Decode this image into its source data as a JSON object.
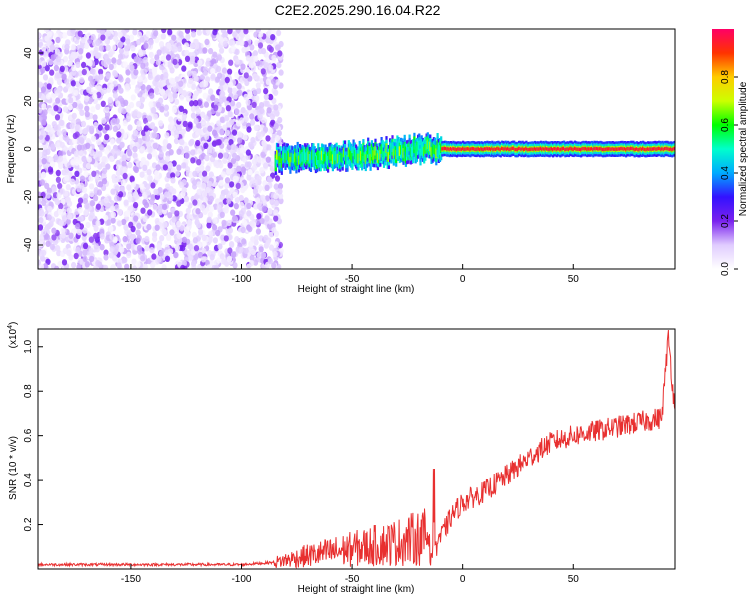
{
  "title": "C2E2.2025.290.16.04.R22",
  "colorbar": {
    "label": "Normalized spectral amplitude",
    "ticks": [
      0.0,
      0.2,
      0.4,
      0.6,
      0.8
    ],
    "tick_labels": [
      "0.0",
      "0.2",
      "0.4",
      "0.6",
      "0.8"
    ],
    "range": [
      0,
      1
    ],
    "colormap": [
      "#ffffff",
      "#e0ccff",
      "#7a22ee",
      "#3311ff",
      "#00aaff",
      "#00ffcc",
      "#00ff00",
      "#ccff00",
      "#ffcc00",
      "#ff3300",
      "#ff0066"
    ]
  },
  "chart_data": [
    {
      "type": "heatmap",
      "xlabel": "Height of straight line (km)",
      "ylabel": "Frequency (Hz)",
      "xlim": [
        -192,
        96
      ],
      "ylim": [
        -50,
        50
      ],
      "xticks": [
        -150,
        -100,
        -50,
        0,
        50
      ],
      "yticks": [
        -40,
        -20,
        0,
        20,
        40
      ],
      "grid": false,
      "description_series": [
        {
          "segment": "noise",
          "x_range": [
            -192,
            -85
          ],
          "amplitude": [
            0.0,
            0.2
          ]
        },
        {
          "segment": "band",
          "x_range": [
            -85,
            96
          ],
          "center_freq": [
            [
              -85,
              -4
            ],
            [
              -60,
              -3
            ],
            [
              -40,
              -2
            ],
            [
              -20,
              0
            ],
            [
              0,
              0
            ],
            [
              10,
              0
            ],
            [
              96,
              0
            ]
          ],
          "amplitude": [
            0.25,
            0.95
          ]
        }
      ]
    },
    {
      "type": "line",
      "xlabel": "Height of straight line (km)",
      "ylabel": "SNR (10 * v/v)",
      "multiplier": "(x10",
      "multiplier_exp": "4",
      "multiplier_close": ")",
      "xlim": [
        -192,
        96
      ],
      "ylim": [
        0,
        1.08
      ],
      "xticks": [
        -150,
        -100,
        -50,
        0,
        50
      ],
      "yticks": [
        0.2,
        0.4,
        0.6,
        0.8,
        1.0
      ],
      "grid": false,
      "color": "#e83030",
      "trend": [
        [
          -192,
          0.02
        ],
        [
          -100,
          0.02
        ],
        [
          -85,
          0.03
        ],
        [
          -70,
          0.06
        ],
        [
          -50,
          0.09
        ],
        [
          -30,
          0.12
        ],
        [
          -15,
          0.15
        ],
        [
          -10,
          0.14
        ],
        [
          -5,
          0.24
        ],
        [
          0,
          0.3
        ],
        [
          10,
          0.35
        ],
        [
          20,
          0.42
        ],
        [
          30,
          0.5
        ],
        [
          40,
          0.57
        ],
        [
          50,
          0.6
        ],
        [
          60,
          0.62
        ],
        [
          70,
          0.64
        ],
        [
          80,
          0.66
        ],
        [
          90,
          0.68
        ],
        [
          93,
          1.05
        ],
        [
          96,
          0.7
        ]
      ]
    }
  ]
}
